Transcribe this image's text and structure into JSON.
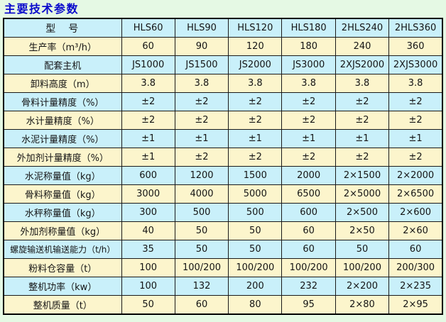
{
  "page": {
    "title": "主要技术参数",
    "title_color": "#0a0acc",
    "background_color": "#e5f9e4"
  },
  "table": {
    "row_colors": {
      "cyan": "#c9f0fa",
      "yellow": "#fcf5cc"
    },
    "header": {
      "label": "型　号",
      "models": [
        "HLS60",
        "HLS90",
        "HLS120",
        "HLS180",
        "2HLS240",
        "2HLS360"
      ]
    },
    "rows": [
      {
        "label": "生产率（m³/h）",
        "values": [
          "60",
          "90",
          "120",
          "180",
          "240",
          "360"
        ]
      },
      {
        "label": "配套主机",
        "values": [
          "JS1000",
          "JS1500",
          "JS2000",
          "JS3000",
          "2XJS2000",
          "2XJS3000"
        ]
      },
      {
        "label": "卸料高度（m）",
        "values": [
          "3.8",
          "3.8",
          "3.8",
          "3.8",
          "3.8",
          "3.8"
        ]
      },
      {
        "label": "骨料计量精度（%）",
        "values": [
          "±2",
          "±2",
          "±2",
          "±2",
          "±2",
          "±2"
        ]
      },
      {
        "label": "水计量精度（%）",
        "values": [
          "±2",
          "±2",
          "±2",
          "±2",
          "±2",
          "±2"
        ]
      },
      {
        "label": "水泥计量精度（%）",
        "values": [
          "±1",
          "±1",
          "±1",
          "±1",
          "±1",
          "±1"
        ]
      },
      {
        "label": "外加剂计量精度（%）",
        "values": [
          "±1",
          "±2",
          "±2",
          "±2",
          "±2",
          "±2"
        ]
      },
      {
        "label": "水泥称量值（kg）",
        "values": [
          "600",
          "1200",
          "1500",
          "2000",
          "2×1500",
          "2×2000"
        ]
      },
      {
        "label": "骨料称量值（kg）",
        "values": [
          "3000",
          "4000",
          "5000",
          "6500",
          "2×5000",
          "2×6500"
        ]
      },
      {
        "label": "水秤称量值（kg）",
        "values": [
          "300",
          "500",
          "500",
          "600",
          "2×500",
          "2×600"
        ]
      },
      {
        "label": "外加剂称量值（kg）",
        "values": [
          "40",
          "50",
          "50",
          "60",
          "2×50",
          "2×60"
        ]
      },
      {
        "label": "螺旋输送机输送能力（t/h）",
        "values": [
          "35",
          "50",
          "50",
          "60",
          "50",
          "60"
        ]
      },
      {
        "label": "粉料仓容量（t）",
        "values": [
          "100",
          "100/200",
          "100/200",
          "100/200",
          "100/200",
          "200/300"
        ]
      },
      {
        "label": "整机功率（kw）",
        "values": [
          "100",
          "132",
          "200",
          "232",
          "2×200",
          "2×235"
        ]
      },
      {
        "label": "整机质量（t）",
        "values": [
          "50",
          "60",
          "80",
          "95",
          "2×80",
          "2×95"
        ]
      }
    ]
  }
}
